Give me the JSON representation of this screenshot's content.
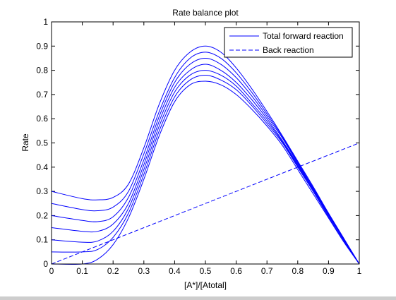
{
  "chart_data": {
    "type": "line",
    "title": "Rate balance plot",
    "xlabel": "[A*]/[Atotal]",
    "ylabel": "Rate",
    "xlim": [
      0,
      1
    ],
    "ylim": [
      0,
      1
    ],
    "xticks": [
      0,
      0.1,
      0.2,
      0.3,
      0.4,
      0.5,
      0.6,
      0.7,
      0.8,
      0.9,
      1
    ],
    "xtick_labels": [
      "0",
      "0.1",
      "0.2",
      "0.3",
      "0.4",
      "0.5",
      "0.6",
      "0.7",
      "0.8",
      "0.9",
      "1"
    ],
    "yticks": [
      0,
      0.1,
      0.2,
      0.3,
      0.4,
      0.5,
      0.6,
      0.7,
      0.8,
      0.9,
      1
    ],
    "ytick_labels": [
      "0",
      "0.1",
      "0.2",
      "0.3",
      "0.4",
      "0.5",
      "0.6",
      "0.7",
      "0.8",
      "0.9",
      "1"
    ],
    "grid": false,
    "legend_position": "top-right",
    "colors": {
      "line": "#0000ff",
      "axes": "#000000",
      "figure_bg": "#cdcdcd",
      "plot_bg": "#ffffff"
    },
    "legend": [
      {
        "label": "Total forward reaction",
        "style": "solid"
      },
      {
        "label": "Back reaction",
        "style": "dashed"
      }
    ],
    "series": [
      {
        "style": "solid",
        "x": [
          0,
          0.1,
          0.15,
          0.2,
          0.25,
          0.3,
          0.35,
          0.4,
          0.45,
          0.5,
          0.55,
          0.6,
          0.65,
          0.7,
          0.75,
          0.8,
          0.85,
          0.9,
          0.95,
          1
        ],
        "y": [
          0.0,
          0.0,
          0.02,
          0.08,
          0.19,
          0.35,
          0.53,
          0.67,
          0.74,
          0.755,
          0.74,
          0.7,
          0.64,
          0.57,
          0.49,
          0.39,
          0.29,
          0.19,
          0.09,
          0.0
        ]
      },
      {
        "style": "solid",
        "x": [
          0,
          0.1,
          0.15,
          0.2,
          0.25,
          0.3,
          0.35,
          0.4,
          0.45,
          0.5,
          0.55,
          0.6,
          0.65,
          0.7,
          0.75,
          0.8,
          0.85,
          0.9,
          0.95,
          1
        ],
        "y": [
          0.05,
          0.05,
          0.06,
          0.11,
          0.21,
          0.37,
          0.55,
          0.69,
          0.76,
          0.78,
          0.76,
          0.72,
          0.655,
          0.58,
          0.5,
          0.4,
          0.3,
          0.195,
          0.095,
          0.0
        ]
      },
      {
        "style": "solid",
        "x": [
          0,
          0.1,
          0.15,
          0.2,
          0.25,
          0.3,
          0.35,
          0.4,
          0.45,
          0.5,
          0.55,
          0.6,
          0.65,
          0.7,
          0.75,
          0.8,
          0.85,
          0.9,
          0.95,
          1
        ],
        "y": [
          0.1,
          0.09,
          0.095,
          0.135,
          0.23,
          0.39,
          0.57,
          0.71,
          0.78,
          0.8,
          0.78,
          0.735,
          0.665,
          0.59,
          0.505,
          0.405,
          0.305,
          0.2,
          0.1,
          0.0
        ]
      },
      {
        "style": "solid",
        "x": [
          0,
          0.1,
          0.15,
          0.2,
          0.25,
          0.3,
          0.35,
          0.4,
          0.45,
          0.5,
          0.55,
          0.6,
          0.65,
          0.7,
          0.75,
          0.8,
          0.85,
          0.9,
          0.95,
          1
        ],
        "y": [
          0.15,
          0.135,
          0.135,
          0.165,
          0.25,
          0.41,
          0.59,
          0.73,
          0.8,
          0.825,
          0.8,
          0.75,
          0.68,
          0.6,
          0.51,
          0.41,
          0.31,
          0.205,
          0.1,
          0.0
        ]
      },
      {
        "style": "solid",
        "x": [
          0,
          0.1,
          0.15,
          0.2,
          0.25,
          0.3,
          0.35,
          0.4,
          0.45,
          0.5,
          0.55,
          0.6,
          0.65,
          0.7,
          0.75,
          0.8,
          0.85,
          0.9,
          0.95,
          1
        ],
        "y": [
          0.2,
          0.18,
          0.175,
          0.195,
          0.275,
          0.43,
          0.61,
          0.75,
          0.825,
          0.85,
          0.825,
          0.77,
          0.695,
          0.61,
          0.52,
          0.415,
          0.31,
          0.205,
          0.1,
          0.0
        ]
      },
      {
        "style": "solid",
        "x": [
          0,
          0.1,
          0.15,
          0.2,
          0.25,
          0.3,
          0.35,
          0.4,
          0.45,
          0.5,
          0.55,
          0.6,
          0.65,
          0.7,
          0.75,
          0.8,
          0.85,
          0.9,
          0.95,
          1
        ],
        "y": [
          0.25,
          0.225,
          0.22,
          0.235,
          0.3,
          0.455,
          0.63,
          0.77,
          0.85,
          0.875,
          0.85,
          0.79,
          0.71,
          0.62,
          0.525,
          0.42,
          0.315,
          0.21,
          0.105,
          0.0
        ]
      },
      {
        "style": "solid",
        "x": [
          0,
          0.1,
          0.15,
          0.2,
          0.25,
          0.3,
          0.35,
          0.4,
          0.45,
          0.5,
          0.55,
          0.6,
          0.65,
          0.7,
          0.75,
          0.8,
          0.85,
          0.9,
          0.95,
          1
        ],
        "y": [
          0.3,
          0.27,
          0.265,
          0.275,
          0.33,
          0.48,
          0.66,
          0.8,
          0.875,
          0.9,
          0.875,
          0.81,
          0.725,
          0.63,
          0.53,
          0.425,
          0.32,
          0.21,
          0.105,
          0.0
        ]
      },
      {
        "style": "dashed",
        "x": [
          0,
          1
        ],
        "y": [
          0,
          0.5
        ]
      }
    ]
  }
}
